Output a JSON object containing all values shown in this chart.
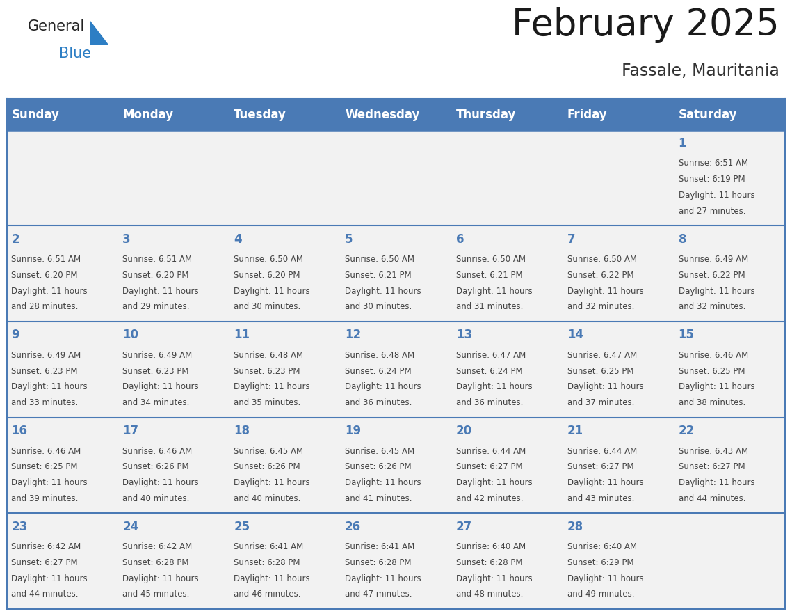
{
  "title": "February 2025",
  "subtitle": "Fassale, Mauritania",
  "days_of_week": [
    "Sunday",
    "Monday",
    "Tuesday",
    "Wednesday",
    "Thursday",
    "Friday",
    "Saturday"
  ],
  "header_bg": "#4a7ab5",
  "header_text": "#ffffff",
  "row_bg": "#f2f2f2",
  "border_color": "#4a7ab5",
  "day_number_color": "#4a7ab5",
  "cell_text_color": "#444444",
  "calendar_data": [
    {
      "day": 1,
      "col": 6,
      "row": 0,
      "sunrise": "6:51 AM",
      "sunset": "6:19 PM",
      "daylight_hours": 11,
      "daylight_minutes": 27
    },
    {
      "day": 2,
      "col": 0,
      "row": 1,
      "sunrise": "6:51 AM",
      "sunset": "6:20 PM",
      "daylight_hours": 11,
      "daylight_minutes": 28
    },
    {
      "day": 3,
      "col": 1,
      "row": 1,
      "sunrise": "6:51 AM",
      "sunset": "6:20 PM",
      "daylight_hours": 11,
      "daylight_minutes": 29
    },
    {
      "day": 4,
      "col": 2,
      "row": 1,
      "sunrise": "6:50 AM",
      "sunset": "6:20 PM",
      "daylight_hours": 11,
      "daylight_minutes": 30
    },
    {
      "day": 5,
      "col": 3,
      "row": 1,
      "sunrise": "6:50 AM",
      "sunset": "6:21 PM",
      "daylight_hours": 11,
      "daylight_minutes": 30
    },
    {
      "day": 6,
      "col": 4,
      "row": 1,
      "sunrise": "6:50 AM",
      "sunset": "6:21 PM",
      "daylight_hours": 11,
      "daylight_minutes": 31
    },
    {
      "day": 7,
      "col": 5,
      "row": 1,
      "sunrise": "6:50 AM",
      "sunset": "6:22 PM",
      "daylight_hours": 11,
      "daylight_minutes": 32
    },
    {
      "day": 8,
      "col": 6,
      "row": 1,
      "sunrise": "6:49 AM",
      "sunset": "6:22 PM",
      "daylight_hours": 11,
      "daylight_minutes": 32
    },
    {
      "day": 9,
      "col": 0,
      "row": 2,
      "sunrise": "6:49 AM",
      "sunset": "6:23 PM",
      "daylight_hours": 11,
      "daylight_minutes": 33
    },
    {
      "day": 10,
      "col": 1,
      "row": 2,
      "sunrise": "6:49 AM",
      "sunset": "6:23 PM",
      "daylight_hours": 11,
      "daylight_minutes": 34
    },
    {
      "day": 11,
      "col": 2,
      "row": 2,
      "sunrise": "6:48 AM",
      "sunset": "6:23 PM",
      "daylight_hours": 11,
      "daylight_minutes": 35
    },
    {
      "day": 12,
      "col": 3,
      "row": 2,
      "sunrise": "6:48 AM",
      "sunset": "6:24 PM",
      "daylight_hours": 11,
      "daylight_minutes": 36
    },
    {
      "day": 13,
      "col": 4,
      "row": 2,
      "sunrise": "6:47 AM",
      "sunset": "6:24 PM",
      "daylight_hours": 11,
      "daylight_minutes": 36
    },
    {
      "day": 14,
      "col": 5,
      "row": 2,
      "sunrise": "6:47 AM",
      "sunset": "6:25 PM",
      "daylight_hours": 11,
      "daylight_minutes": 37
    },
    {
      "day": 15,
      "col": 6,
      "row": 2,
      "sunrise": "6:46 AM",
      "sunset": "6:25 PM",
      "daylight_hours": 11,
      "daylight_minutes": 38
    },
    {
      "day": 16,
      "col": 0,
      "row": 3,
      "sunrise": "6:46 AM",
      "sunset": "6:25 PM",
      "daylight_hours": 11,
      "daylight_minutes": 39
    },
    {
      "day": 17,
      "col": 1,
      "row": 3,
      "sunrise": "6:46 AM",
      "sunset": "6:26 PM",
      "daylight_hours": 11,
      "daylight_minutes": 40
    },
    {
      "day": 18,
      "col": 2,
      "row": 3,
      "sunrise": "6:45 AM",
      "sunset": "6:26 PM",
      "daylight_hours": 11,
      "daylight_minutes": 40
    },
    {
      "day": 19,
      "col": 3,
      "row": 3,
      "sunrise": "6:45 AM",
      "sunset": "6:26 PM",
      "daylight_hours": 11,
      "daylight_minutes": 41
    },
    {
      "day": 20,
      "col": 4,
      "row": 3,
      "sunrise": "6:44 AM",
      "sunset": "6:27 PM",
      "daylight_hours": 11,
      "daylight_minutes": 42
    },
    {
      "day": 21,
      "col": 5,
      "row": 3,
      "sunrise": "6:44 AM",
      "sunset": "6:27 PM",
      "daylight_hours": 11,
      "daylight_minutes": 43
    },
    {
      "day": 22,
      "col": 6,
      "row": 3,
      "sunrise": "6:43 AM",
      "sunset": "6:27 PM",
      "daylight_hours": 11,
      "daylight_minutes": 44
    },
    {
      "day": 23,
      "col": 0,
      "row": 4,
      "sunrise": "6:42 AM",
      "sunset": "6:27 PM",
      "daylight_hours": 11,
      "daylight_minutes": 44
    },
    {
      "day": 24,
      "col": 1,
      "row": 4,
      "sunrise": "6:42 AM",
      "sunset": "6:28 PM",
      "daylight_hours": 11,
      "daylight_minutes": 45
    },
    {
      "day": 25,
      "col": 2,
      "row": 4,
      "sunrise": "6:41 AM",
      "sunset": "6:28 PM",
      "daylight_hours": 11,
      "daylight_minutes": 46
    },
    {
      "day": 26,
      "col": 3,
      "row": 4,
      "sunrise": "6:41 AM",
      "sunset": "6:28 PM",
      "daylight_hours": 11,
      "daylight_minutes": 47
    },
    {
      "day": 27,
      "col": 4,
      "row": 4,
      "sunrise": "6:40 AM",
      "sunset": "6:28 PM",
      "daylight_hours": 11,
      "daylight_minutes": 48
    },
    {
      "day": 28,
      "col": 5,
      "row": 4,
      "sunrise": "6:40 AM",
      "sunset": "6:29 PM",
      "daylight_hours": 11,
      "daylight_minutes": 49
    }
  ],
  "num_rows": 5,
  "num_cols": 7,
  "logo_color_general": "#222222",
  "logo_color_blue": "#2d7ec4",
  "logo_triangle_color": "#2d7ec4",
  "title_fontsize": 38,
  "subtitle_fontsize": 17,
  "header_fontsize": 12,
  "day_number_fontsize": 12,
  "cell_text_fontsize": 8.5
}
